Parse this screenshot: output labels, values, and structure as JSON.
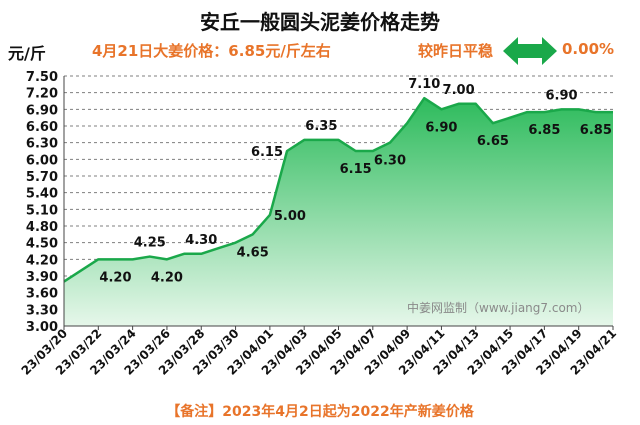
{
  "header": {
    "title": "安丘一般圆头泥姜价格走势",
    "unit": "元/斤",
    "price_line": "4月21日大姜价格：6.85元/斤左右",
    "compare_label": "较昨日平稳",
    "compare_value": "0.00%",
    "compare_icon": "double-arrow-icon"
  },
  "watermark": "中姜网监制（www.jiang7.com）",
  "footnote": "【备注】2023年4月2日起为2022年产新姜价格",
  "colors": {
    "accent": "#e8742a",
    "line": "#1aa84a",
    "fill_top": "#2dbb5c",
    "fill_bottom": "#e6f7ea",
    "grid": "#7f7f7f",
    "arrow": "#1aa84a"
  },
  "chart_data": {
    "type": "area",
    "title": "安丘一般圆头泥姜价格走势",
    "ylabel": "元/斤",
    "ylim": [
      3.0,
      7.5
    ],
    "ytick_step": 0.3,
    "yticks": [
      "3.00",
      "3.30",
      "3.60",
      "3.90",
      "4.20",
      "4.50",
      "4.80",
      "5.10",
      "5.40",
      "5.70",
      "6.00",
      "6.30",
      "6.60",
      "6.90",
      "7.20",
      "7.50"
    ],
    "x": [
      "23/03/20",
      "23/03/21",
      "23/03/22",
      "23/03/23",
      "23/03/24",
      "23/03/25",
      "23/03/26",
      "23/03/27",
      "23/03/28",
      "23/03/29",
      "23/03/30",
      "23/03/31",
      "23/04/01",
      "23/04/02",
      "23/04/03",
      "23/04/04",
      "23/04/05",
      "23/04/06",
      "23/04/07",
      "23/04/08",
      "23/04/09",
      "23/04/10",
      "23/04/11",
      "23/04/12",
      "23/04/13",
      "23/04/14",
      "23/04/15",
      "23/04/16",
      "23/04/17",
      "23/04/18",
      "23/04/19",
      "23/04/20",
      "23/04/21"
    ],
    "xtick_labels": [
      "23/03/20",
      "23/03/22",
      "23/03/24",
      "23/03/26",
      "23/03/28",
      "23/03/30",
      "23/04/01",
      "23/04/03",
      "23/04/05",
      "23/04/07",
      "23/04/09",
      "23/04/11",
      "23/04/13",
      "23/04/15",
      "23/04/17",
      "23/04/19",
      "23/04/21"
    ],
    "values": [
      3.8,
      4.0,
      4.2,
      4.2,
      4.2,
      4.25,
      4.2,
      4.3,
      4.3,
      4.4,
      4.5,
      4.65,
      5.0,
      6.15,
      6.35,
      6.35,
      6.35,
      6.15,
      6.15,
      6.3,
      6.65,
      7.1,
      6.9,
      7.0,
      7.0,
      6.65,
      6.75,
      6.85,
      6.85,
      6.9,
      6.9,
      6.85,
      6.85
    ],
    "annotations": [
      {
        "index": 3,
        "text": "4.20",
        "pos": "below"
      },
      {
        "index": 5,
        "text": "4.25",
        "pos": "above"
      },
      {
        "index": 6,
        "text": "4.20",
        "pos": "below"
      },
      {
        "index": 8,
        "text": "4.30",
        "pos": "above"
      },
      {
        "index": 11,
        "text": "4.65",
        "pos": "below"
      },
      {
        "index": 12,
        "text": "5.00",
        "pos": "right"
      },
      {
        "index": 13,
        "text": "6.15",
        "pos": "left"
      },
      {
        "index": 15,
        "text": "6.35",
        "pos": "above"
      },
      {
        "index": 17,
        "text": "6.15",
        "pos": "below"
      },
      {
        "index": 19,
        "text": "6.30",
        "pos": "below"
      },
      {
        "index": 21,
        "text": "7.10",
        "pos": "above"
      },
      {
        "index": 22,
        "text": "6.90",
        "pos": "below"
      },
      {
        "index": 23,
        "text": "7.00",
        "pos": "above"
      },
      {
        "index": 25,
        "text": "6.65",
        "pos": "below"
      },
      {
        "index": 28,
        "text": "6.85",
        "pos": "below"
      },
      {
        "index": 29,
        "text": "6.90",
        "pos": "above"
      },
      {
        "index": 31,
        "text": "6.85",
        "pos": "below"
      }
    ]
  }
}
